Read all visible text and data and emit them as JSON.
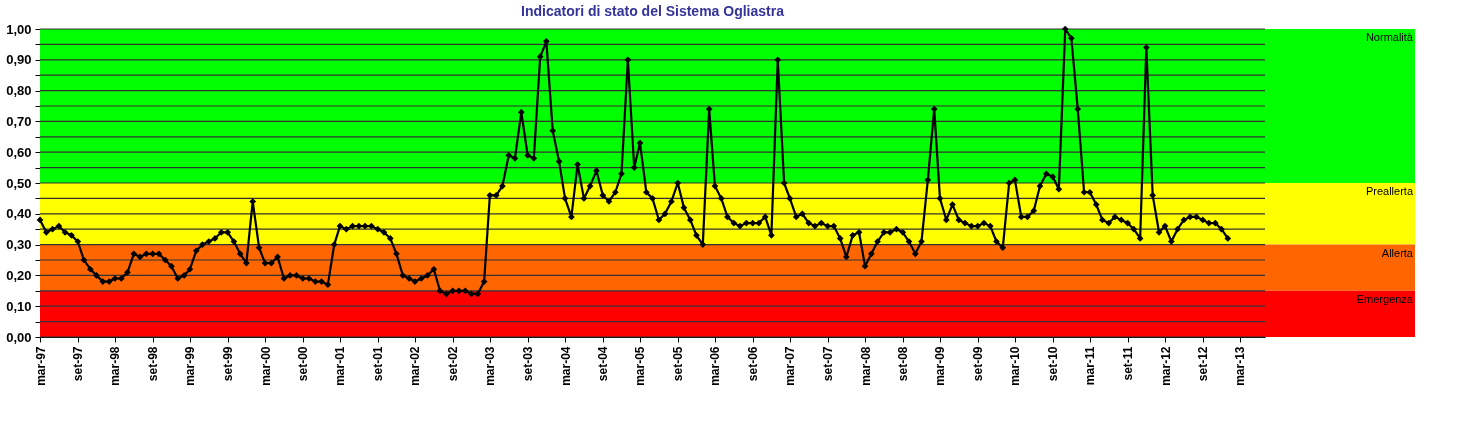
{
  "chart_data": {
    "type": "line",
    "title": "Indicatori di stato del Sistema Ogliastra",
    "x": [
      "1997-03",
      "1997-04",
      "1997-05",
      "1997-06",
      "1997-07",
      "1997-08",
      "1997-09",
      "1997-10",
      "1997-11",
      "1997-12",
      "1998-01",
      "1998-02",
      "1998-03",
      "1998-04",
      "1998-05",
      "1998-06",
      "1998-07",
      "1998-08",
      "1998-09",
      "1998-10",
      "1998-11",
      "1998-12",
      "1999-01",
      "1999-02",
      "1999-03",
      "1999-04",
      "1999-05",
      "1999-06",
      "1999-07",
      "1999-08",
      "1999-09",
      "1999-10",
      "1999-11",
      "1999-12",
      "2000-01",
      "2000-02",
      "2000-03",
      "2000-04",
      "2000-05",
      "2000-06",
      "2000-07",
      "2000-08",
      "2000-09",
      "2000-10",
      "2000-11",
      "2000-12",
      "2001-01",
      "2001-02",
      "2001-03",
      "2001-04",
      "2001-05",
      "2001-06",
      "2001-07",
      "2001-08",
      "2001-09",
      "2001-10",
      "2001-11",
      "2001-12",
      "2002-01",
      "2002-02",
      "2002-03",
      "2002-04",
      "2002-05",
      "2002-06",
      "2002-07",
      "2002-08",
      "2002-09",
      "2002-10",
      "2002-11",
      "2002-12",
      "2003-01",
      "2003-02",
      "2003-03",
      "2003-04",
      "2003-05",
      "2003-06",
      "2003-07",
      "2003-08",
      "2003-09",
      "2003-10",
      "2003-11",
      "2003-12",
      "2004-01",
      "2004-02",
      "2004-03",
      "2004-04",
      "2004-05",
      "2004-06",
      "2004-07",
      "2004-08",
      "2004-09",
      "2004-10",
      "2004-11",
      "2004-12",
      "2005-01",
      "2005-02",
      "2005-03",
      "2005-04",
      "2005-05",
      "2005-06",
      "2005-07",
      "2005-08",
      "2005-09",
      "2005-10",
      "2005-11",
      "2005-12",
      "2006-01",
      "2006-02",
      "2006-03",
      "2006-04",
      "2006-05",
      "2006-06",
      "2006-07",
      "2006-08",
      "2006-09",
      "2006-10",
      "2006-11",
      "2006-12",
      "2007-01",
      "2007-02",
      "2007-03",
      "2007-04",
      "2007-05",
      "2007-06",
      "2007-07",
      "2007-08",
      "2007-09",
      "2007-10",
      "2007-11",
      "2007-12",
      "2008-01",
      "2008-02",
      "2008-03",
      "2008-04",
      "2008-05",
      "2008-06",
      "2008-07",
      "2008-08",
      "2008-09",
      "2008-10",
      "2008-11",
      "2008-12",
      "2009-01",
      "2009-02",
      "2009-03",
      "2009-04",
      "2009-05",
      "2009-06",
      "2009-07",
      "2009-08",
      "2009-09",
      "2009-10",
      "2009-11",
      "2009-12",
      "2010-01",
      "2010-02",
      "2010-03",
      "2010-04",
      "2010-05",
      "2010-06",
      "2010-07",
      "2010-08",
      "2010-09",
      "2010-10",
      "2010-11",
      "2010-12",
      "2011-01",
      "2011-02",
      "2011-03",
      "2011-04",
      "2011-05",
      "2011-06",
      "2011-07",
      "2011-08",
      "2011-09",
      "2011-10",
      "2011-11",
      "2011-12",
      "2012-01",
      "2012-02",
      "2012-03",
      "2012-04",
      "2012-05",
      "2012-06",
      "2012-07",
      "2012-08",
      "2012-09",
      "2012-10",
      "2012-11",
      "2012-12",
      "2013-01"
    ],
    "series": [
      {
        "color": "#000000",
        "values": [
          0.38,
          0.34,
          0.35,
          0.36,
          0.34,
          0.33,
          0.31,
          0.25,
          0.22,
          0.2,
          0.18,
          0.18,
          0.19,
          0.19,
          0.21,
          0.27,
          0.26,
          0.27,
          0.27,
          0.27,
          0.25,
          0.23,
          0.19,
          0.2,
          0.22,
          0.28,
          0.3,
          0.31,
          0.32,
          0.34,
          0.34,
          0.31,
          0.27,
          0.24,
          0.44,
          0.29,
          0.24,
          0.24,
          0.26,
          0.19,
          0.2,
          0.2,
          0.19,
          0.19,
          0.18,
          0.18,
          0.17,
          0.3,
          0.36,
          0.35,
          0.36,
          0.36,
          0.36,
          0.36,
          0.35,
          0.34,
          0.32,
          0.27,
          0.2,
          0.19,
          0.18,
          0.19,
          0.2,
          0.22,
          0.15,
          0.14,
          0.15,
          0.15,
          0.15,
          0.14,
          0.14,
          0.18,
          0.46,
          0.46,
          0.49,
          0.59,
          0.58,
          0.73,
          0.59,
          0.58,
          0.91,
          0.96,
          0.67,
          0.57,
          0.45,
          0.39,
          0.56,
          0.45,
          0.49,
          0.54,
          0.46,
          0.44,
          0.47,
          0.53,
          0.9,
          0.55,
          0.63,
          0.47,
          0.45,
          0.38,
          0.4,
          0.44,
          0.5,
          0.42,
          0.38,
          0.33,
          0.3,
          0.74,
          0.49,
          0.45,
          0.39,
          0.37,
          0.36,
          0.37,
          0.37,
          0.37,
          0.39,
          0.33,
          0.9,
          0.5,
          0.45,
          0.39,
          0.4,
          0.37,
          0.36,
          0.37,
          0.36,
          0.36,
          0.32,
          0.26,
          0.33,
          0.34,
          0.23,
          0.27,
          0.31,
          0.34,
          0.34,
          0.35,
          0.34,
          0.31,
          0.27,
          0.31,
          0.51,
          0.74,
          0.45,
          0.38,
          0.43,
          0.38,
          0.37,
          0.36,
          0.36,
          0.37,
          0.36,
          0.31,
          0.29,
          0.5,
          0.51,
          0.39,
          0.39,
          0.41,
          0.49,
          0.53,
          0.52,
          0.48,
          1.0,
          0.97,
          0.74,
          0.47,
          0.47,
          0.43,
          0.38,
          0.37,
          0.39,
          0.38,
          0.37,
          0.35,
          0.32,
          0.94,
          0.46,
          0.34,
          0.36,
          0.31,
          0.35,
          0.38,
          0.39,
          0.39,
          0.38,
          0.37,
          0.37,
          0.35,
          0.32
        ]
      }
    ],
    "marker": "diamond",
    "line_style": "solid",
    "grid": "y",
    "ylim": [
      0,
      1
    ],
    "yticks": [
      {
        "value": 0,
        "label": "0,00"
      },
      {
        "value": 0.05,
        "label": null
      },
      {
        "value": 0.1,
        "label": "0,10"
      },
      {
        "value": 0.15,
        "label": null
      },
      {
        "value": 0.2,
        "label": "0,20"
      },
      {
        "value": 0.25,
        "label": null
      },
      {
        "value": 0.3,
        "label": "0,30"
      },
      {
        "value": 0.35,
        "label": null
      },
      {
        "value": 0.4,
        "label": "0,40"
      },
      {
        "value": 0.45,
        "label": null
      },
      {
        "value": 0.5,
        "label": "0,50"
      },
      {
        "value": 0.55,
        "label": null
      },
      {
        "value": 0.6,
        "label": "0,60"
      },
      {
        "value": 0.65,
        "label": null
      },
      {
        "value": 0.7,
        "label": "0,70"
      },
      {
        "value": 0.75,
        "label": null
      },
      {
        "value": 0.8,
        "label": "0,80"
      },
      {
        "value": 0.85,
        "label": null
      },
      {
        "value": 0.9,
        "label": "0,90"
      },
      {
        "value": 0.95,
        "label": null
      },
      {
        "value": 1.0,
        "label": "1,00"
      }
    ],
    "xlim": [
      "1997-03",
      "2013-07"
    ],
    "xticks": [
      {
        "value": "1997-03",
        "label": "mar-97"
      },
      {
        "value": "1997-09",
        "label": "set-97"
      },
      {
        "value": "1998-03",
        "label": "mar-98"
      },
      {
        "value": "1998-09",
        "label": "set-98"
      },
      {
        "value": "1999-03",
        "label": "mar-99"
      },
      {
        "value": "1999-09",
        "label": "set-99"
      },
      {
        "value": "2000-03",
        "label": "mar-00"
      },
      {
        "value": "2000-09",
        "label": "set-00"
      },
      {
        "value": "2001-03",
        "label": "mar-01"
      },
      {
        "value": "2001-09",
        "label": "set-01"
      },
      {
        "value": "2002-03",
        "label": "mar-02"
      },
      {
        "value": "2002-09",
        "label": "set-02"
      },
      {
        "value": "2003-03",
        "label": "mar-03"
      },
      {
        "value": "2003-09",
        "label": "set-03"
      },
      {
        "value": "2004-03",
        "label": "mar-04"
      },
      {
        "value": "2004-09",
        "label": "set-04"
      },
      {
        "value": "2005-03",
        "label": "mar-05"
      },
      {
        "value": "2005-09",
        "label": "set-05"
      },
      {
        "value": "2006-03",
        "label": "mar-06"
      },
      {
        "value": "2006-09",
        "label": "set-06"
      },
      {
        "value": "2007-03",
        "label": "mar-07"
      },
      {
        "value": "2007-09",
        "label": "set-07"
      },
      {
        "value": "2008-03",
        "label": "mar-08"
      },
      {
        "value": "2008-09",
        "label": "set-08"
      },
      {
        "value": "2009-03",
        "label": "mar-09"
      },
      {
        "value": "2009-09",
        "label": "set-09"
      },
      {
        "value": "2010-03",
        "label": "mar-10"
      },
      {
        "value": "2010-09",
        "label": "set-10"
      },
      {
        "value": "2011-03",
        "label": "mar-11"
      },
      {
        "value": "2011-09",
        "label": "set-11"
      },
      {
        "value": "2012-03",
        "label": "mar-12"
      },
      {
        "value": "2012-09",
        "label": "set-12"
      },
      {
        "value": "2013-03",
        "label": "mar-13"
      }
    ],
    "bands": [
      {
        "axis": "y",
        "from": 0.5,
        "to": 1.0,
        "label": "Normalità",
        "color": "#00ff00"
      },
      {
        "axis": "y",
        "from": 0.3,
        "to": 0.5,
        "label": "Preallerta",
        "color": "#ffff00"
      },
      {
        "axis": "y",
        "from": 0.15,
        "to": 0.3,
        "label": "Allerta",
        "color": "#ff6600"
      },
      {
        "axis": "y",
        "from": 0.0,
        "to": 0.15,
        "label": "Emergenza",
        "color": "#ff0000"
      }
    ]
  }
}
